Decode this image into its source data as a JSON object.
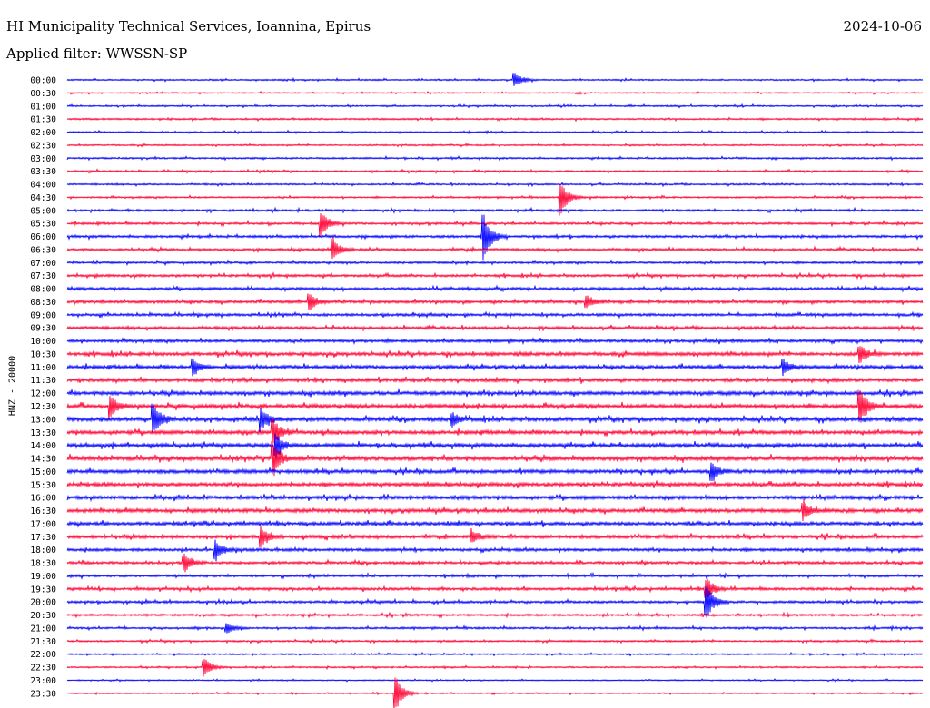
{
  "header": {
    "station_title": "HI Municipality Technical Services, Ioannina, Epirus",
    "date": "2024-10-06",
    "filter_prefix": "Applied filter:",
    "filter_name": "WWSSN-SP",
    "filter_text": "Applied filter: WWSSN-SP"
  },
  "colors": {
    "odd_trace": "#0000ff",
    "even_trace": "#ff0033",
    "text": "#000000"
  },
  "chart_data": {
    "type": "line",
    "title": "HI Municipality Technical Services, Ioannina, Epirus",
    "ylabel": "HNZ - 20000",
    "xlabel": "",
    "row_labels": [
      "00:00",
      "00:30",
      "01:00",
      "01:30",
      "02:00",
      "02:30",
      "03:00",
      "03:30",
      "04:00",
      "04:30",
      "05:00",
      "05:30",
      "06:00",
      "06:30",
      "07:00",
      "07:30",
      "08:00",
      "08:30",
      "09:00",
      "09:30",
      "10:00",
      "10:30",
      "11:00",
      "11:30",
      "12:00",
      "12:30",
      "13:00",
      "13:30",
      "14:00",
      "14:30",
      "15:00",
      "15:30",
      "16:00",
      "16:30",
      "17:00",
      "17:30",
      "18:00",
      "18:30",
      "19:00",
      "19:30",
      "20:00",
      "20:30",
      "21:00",
      "21:30",
      "22:00",
      "22:30",
      "23:00",
      "23:30"
    ],
    "minutes_per_row": 30,
    "noise_level": [
      0.3,
      0.25,
      0.3,
      0.35,
      0.3,
      0.3,
      0.35,
      0.35,
      0.35,
      0.35,
      0.45,
      0.45,
      0.5,
      0.5,
      0.45,
      0.5,
      0.55,
      0.6,
      0.55,
      0.6,
      0.6,
      0.7,
      0.7,
      0.7,
      0.75,
      0.8,
      0.8,
      0.75,
      0.8,
      0.85,
      0.75,
      0.75,
      0.7,
      0.75,
      0.7,
      0.7,
      0.6,
      0.55,
      0.5,
      0.55,
      0.5,
      0.45,
      0.4,
      0.35,
      0.3,
      0.3,
      0.25,
      0.25
    ],
    "events": [
      {
        "row": "00:00",
        "minute": 15.7,
        "amplitude": 1.2
      },
      {
        "row": "04:30",
        "minute": 17.3,
        "amplitude": 3.0
      },
      {
        "row": "05:30",
        "minute": 8.9,
        "amplitude": 2.2
      },
      {
        "row": "06:00",
        "minute": 14.6,
        "amplitude": 4.0
      },
      {
        "row": "06:30",
        "minute": 9.3,
        "amplitude": 2.0
      },
      {
        "row": "08:30",
        "minute": 8.5,
        "amplitude": 1.4
      },
      {
        "row": "08:30",
        "minute": 18.2,
        "amplitude": 1.2
      },
      {
        "row": "11:00",
        "minute": 4.4,
        "amplitude": 1.6
      },
      {
        "row": "11:00",
        "minute": 25.1,
        "amplitude": 1.3
      },
      {
        "row": "10:30",
        "minute": 27.8,
        "amplitude": 1.4
      },
      {
        "row": "12:30",
        "minute": 1.5,
        "amplitude": 2.0
      },
      {
        "row": "12:30",
        "minute": 27.8,
        "amplitude": 3.0
      },
      {
        "row": "13:00",
        "minute": 3.0,
        "amplitude": 2.8
      },
      {
        "row": "13:00",
        "minute": 6.8,
        "amplitude": 1.8
      },
      {
        "row": "13:00",
        "minute": 13.5,
        "amplitude": 1.2
      },
      {
        "row": "13:30",
        "minute": 7.2,
        "amplitude": 2.5
      },
      {
        "row": "14:00",
        "minute": 7.3,
        "amplitude": 2.2
      },
      {
        "row": "14:30",
        "minute": 7.2,
        "amplitude": 3.5
      },
      {
        "row": "15:00",
        "minute": 22.6,
        "amplitude": 1.4
      },
      {
        "row": "16:30",
        "minute": 25.8,
        "amplitude": 1.6
      },
      {
        "row": "17:30",
        "minute": 6.8,
        "amplitude": 1.8
      },
      {
        "row": "17:30",
        "minute": 14.2,
        "amplitude": 1.0
      },
      {
        "row": "18:00",
        "minute": 5.2,
        "amplitude": 1.5
      },
      {
        "row": "18:30",
        "minute": 4.1,
        "amplitude": 1.6
      },
      {
        "row": "19:30",
        "minute": 22.4,
        "amplitude": 2.0
      },
      {
        "row": "20:00",
        "minute": 22.4,
        "amplitude": 3.2
      },
      {
        "row": "21:00",
        "minute": 5.6,
        "amplitude": 0.9
      },
      {
        "row": "22:30",
        "minute": 4.8,
        "amplitude": 1.6
      },
      {
        "row": "23:30",
        "minute": 11.5,
        "amplitude": 3.2
      }
    ]
  }
}
